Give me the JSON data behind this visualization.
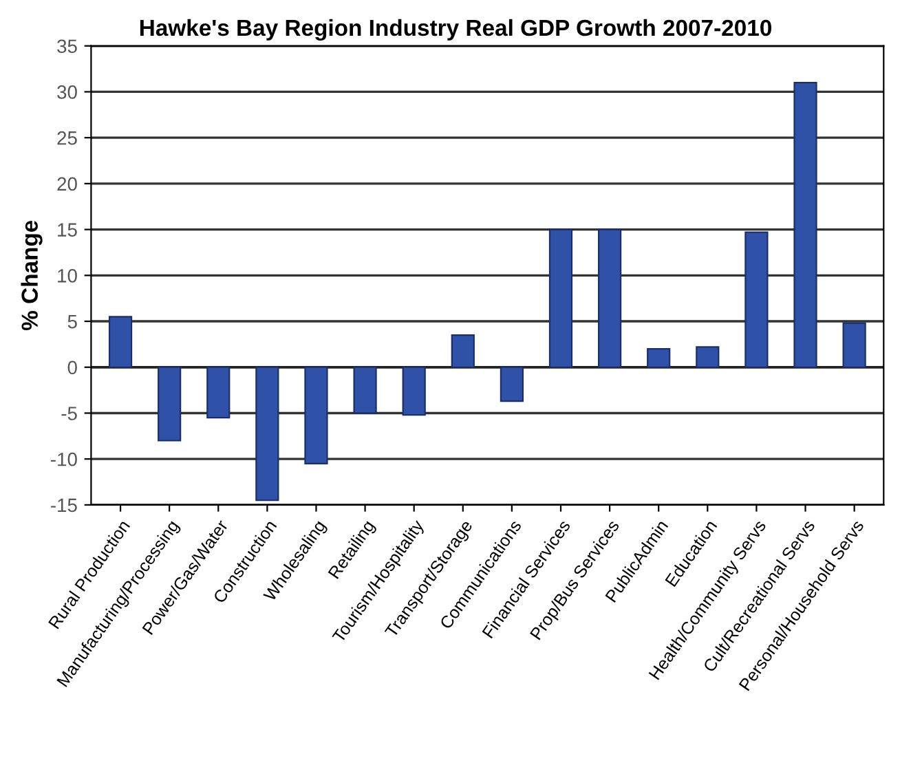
{
  "chart_data": {
    "type": "bar",
    "title": "Hawke's Bay Region Industry Real GDP Growth 2007-2010",
    "ylabel": "% Change",
    "categories": [
      "Rural Production",
      "Manufacturing/Processing",
      "Power/Gas/Water",
      "Construction",
      "Wholesaling",
      "Retailing",
      "Tourism/Hospitality",
      "Transport/Storage",
      "Communications",
      "Financial Services",
      "Prop/Bus Services",
      "PublicAdmin",
      "Education",
      "Health/Community Servs",
      "Cult/Recreational Servs",
      "Personal/Household Servs"
    ],
    "values": [
      5.5,
      -8,
      -5.5,
      -14.5,
      -10.5,
      -5,
      -5.2,
      3.5,
      -3.7,
      15,
      15,
      2,
      2.2,
      14.7,
      31,
      4.8
    ],
    "color": "#2f52a8",
    "ylim": [
      -15,
      35
    ],
    "yticks": [
      -15,
      -10,
      -5,
      0,
      5,
      10,
      15,
      20,
      25,
      30,
      35
    ],
    "grid": "y"
  }
}
